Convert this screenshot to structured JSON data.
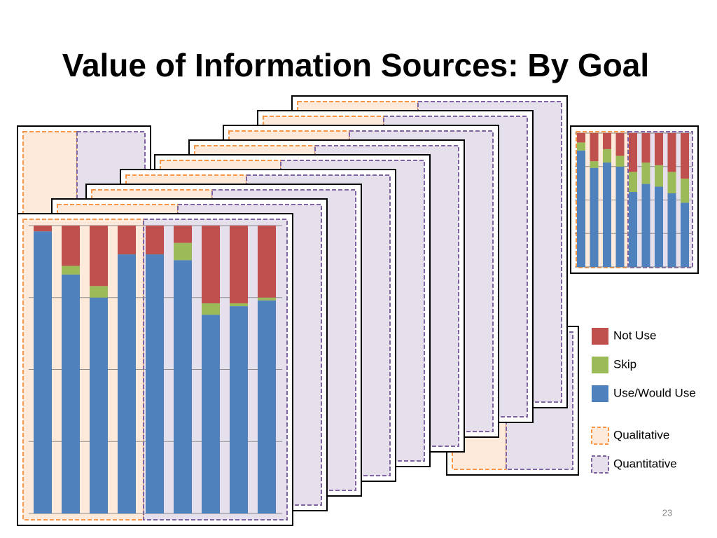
{
  "title": "Value of Information Sources: By Goal",
  "page_number": "23",
  "groups": [
    {
      "name": "Qualitative",
      "border": "#f79646",
      "fill": "#fdeada"
    },
    {
      "name": "Quantitative",
      "border": "#8064a2",
      "fill": "#e5e0ec"
    }
  ],
  "chart_data": [
    {
      "type": "stacked_bar",
      "categories": [
        null,
        null,
        null,
        null,
        null,
        null,
        null,
        null,
        null
      ],
      "series": [
        {
          "name": "Use/Would Use",
          "color": "#4f81bd",
          "values": [
            98,
            83,
            75,
            90,
            90,
            88,
            69,
            72,
            74
          ]
        },
        {
          "name": "Skip",
          "color": "#9bbb59",
          "values": [
            0,
            3,
            4,
            0,
            0,
            6,
            4,
            1,
            1
          ]
        },
        {
          "name": "Not Use",
          "color": "#c0504d",
          "values": [
            2,
            14,
            21,
            10,
            10,
            6,
            27,
            27,
            25
          ]
        }
      ],
      "ylim": [
        0,
        100
      ],
      "yticks": [
        0,
        25,
        50,
        75,
        100
      ],
      "grid": true
    },
    {
      "type": "stacked_bar",
      "categories": [
        null,
        null,
        null,
        null,
        null,
        null,
        null,
        null,
        null
      ],
      "series": [
        {
          "color": "#4f81bd",
          "values": [
            87,
            74,
            78,
            75,
            56,
            62,
            60,
            55,
            48
          ]
        },
        {
          "color": "#9bbb59",
          "values": [
            6,
            5,
            10,
            8,
            15,
            16,
            16,
            16,
            18
          ]
        },
        {
          "color": "#c0504d",
          "values": [
            7,
            21,
            12,
            17,
            29,
            22,
            24,
            29,
            34
          ]
        }
      ],
      "ylim": [
        0,
        100
      ],
      "yticks": [
        0,
        25,
        50,
        75,
        100
      ],
      "grid": true
    }
  ]
}
